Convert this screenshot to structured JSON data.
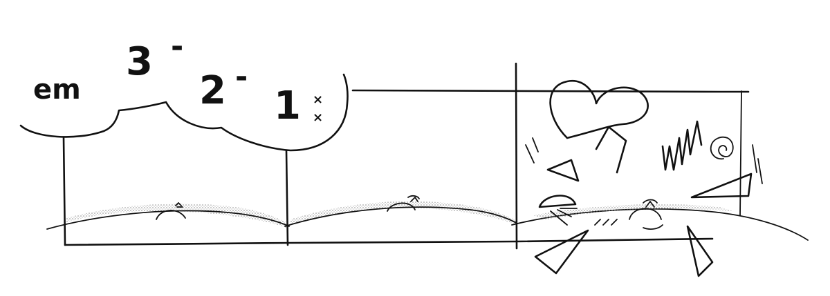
{
  "comic": {
    "caption_em": "em",
    "count_3": "3",
    "count_2": "2",
    "count_1": "1",
    "mark_dash": "-",
    "mark_x": "×"
  },
  "colors": {
    "ink": "#111111",
    "paper": "#ffffff",
    "stipple": "#9a9a9a"
  },
  "icons": [
    "thought-bubble-icon",
    "lightning-icon",
    "heart-icon",
    "spiral-icon",
    "zigzag-icon",
    "burst-triangle-icon"
  ]
}
